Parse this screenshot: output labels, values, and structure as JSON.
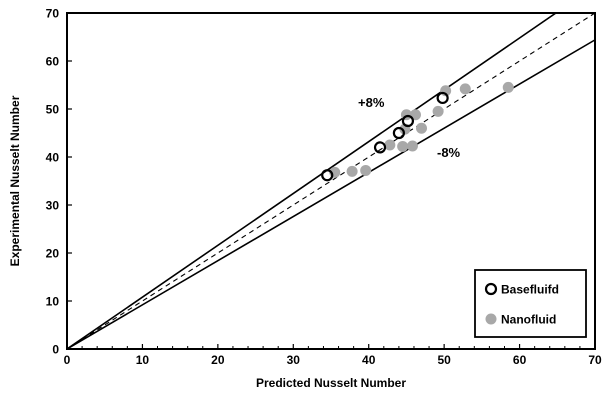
{
  "chart_data": {
    "type": "scatter",
    "title": "",
    "xlabel": "Predicted Nusselt Number",
    "ylabel": "Experimental Nusselt Number",
    "xlim": [
      0,
      70
    ],
    "ylim": [
      0,
      70
    ],
    "xticks": [
      "0",
      "10",
      "20",
      "30",
      "40",
      "50",
      "60",
      "70"
    ],
    "yticks": [
      "0",
      "10",
      "20",
      "30",
      "40",
      "50",
      "60",
      "70"
    ],
    "grid": false,
    "legend_position": "bottom-right",
    "reference_lines": [
      {
        "kind": "ideal",
        "slope": 1.0,
        "style": "dashed"
      },
      {
        "kind": "upper",
        "slope": 1.08,
        "label": "+8%",
        "style": "solid"
      },
      {
        "kind": "lower",
        "slope": 0.92,
        "label": "-8%",
        "style": "solid"
      }
    ],
    "series": [
      {
        "name": "Basefluifd",
        "marker": "open-circle",
        "color": "#000000",
        "points": [
          {
            "x": 34.5,
            "y": 36.2
          },
          {
            "x": 41.5,
            "y": 42.0
          },
          {
            "x": 44.0,
            "y": 45.0
          },
          {
            "x": 45.2,
            "y": 47.5
          },
          {
            "x": 49.8,
            "y": 52.3
          }
        ]
      },
      {
        "name": "Nanofluid",
        "marker": "filled-circle",
        "color": "#a8a8a8",
        "points": [
          {
            "x": 35.5,
            "y": 36.8
          },
          {
            "x": 37.8,
            "y": 37.0
          },
          {
            "x": 39.6,
            "y": 37.2
          },
          {
            "x": 42.8,
            "y": 42.5
          },
          {
            "x": 44.5,
            "y": 42.2
          },
          {
            "x": 45.8,
            "y": 42.3
          },
          {
            "x": 44.8,
            "y": 45.8
          },
          {
            "x": 45.0,
            "y": 48.8
          },
          {
            "x": 46.2,
            "y": 48.8
          },
          {
            "x": 47.0,
            "y": 46.0
          },
          {
            "x": 49.2,
            "y": 49.5
          },
          {
            "x": 50.2,
            "y": 53.8
          },
          {
            "x": 52.8,
            "y": 54.2
          },
          {
            "x": 58.5,
            "y": 54.5
          }
        ]
      }
    ]
  }
}
